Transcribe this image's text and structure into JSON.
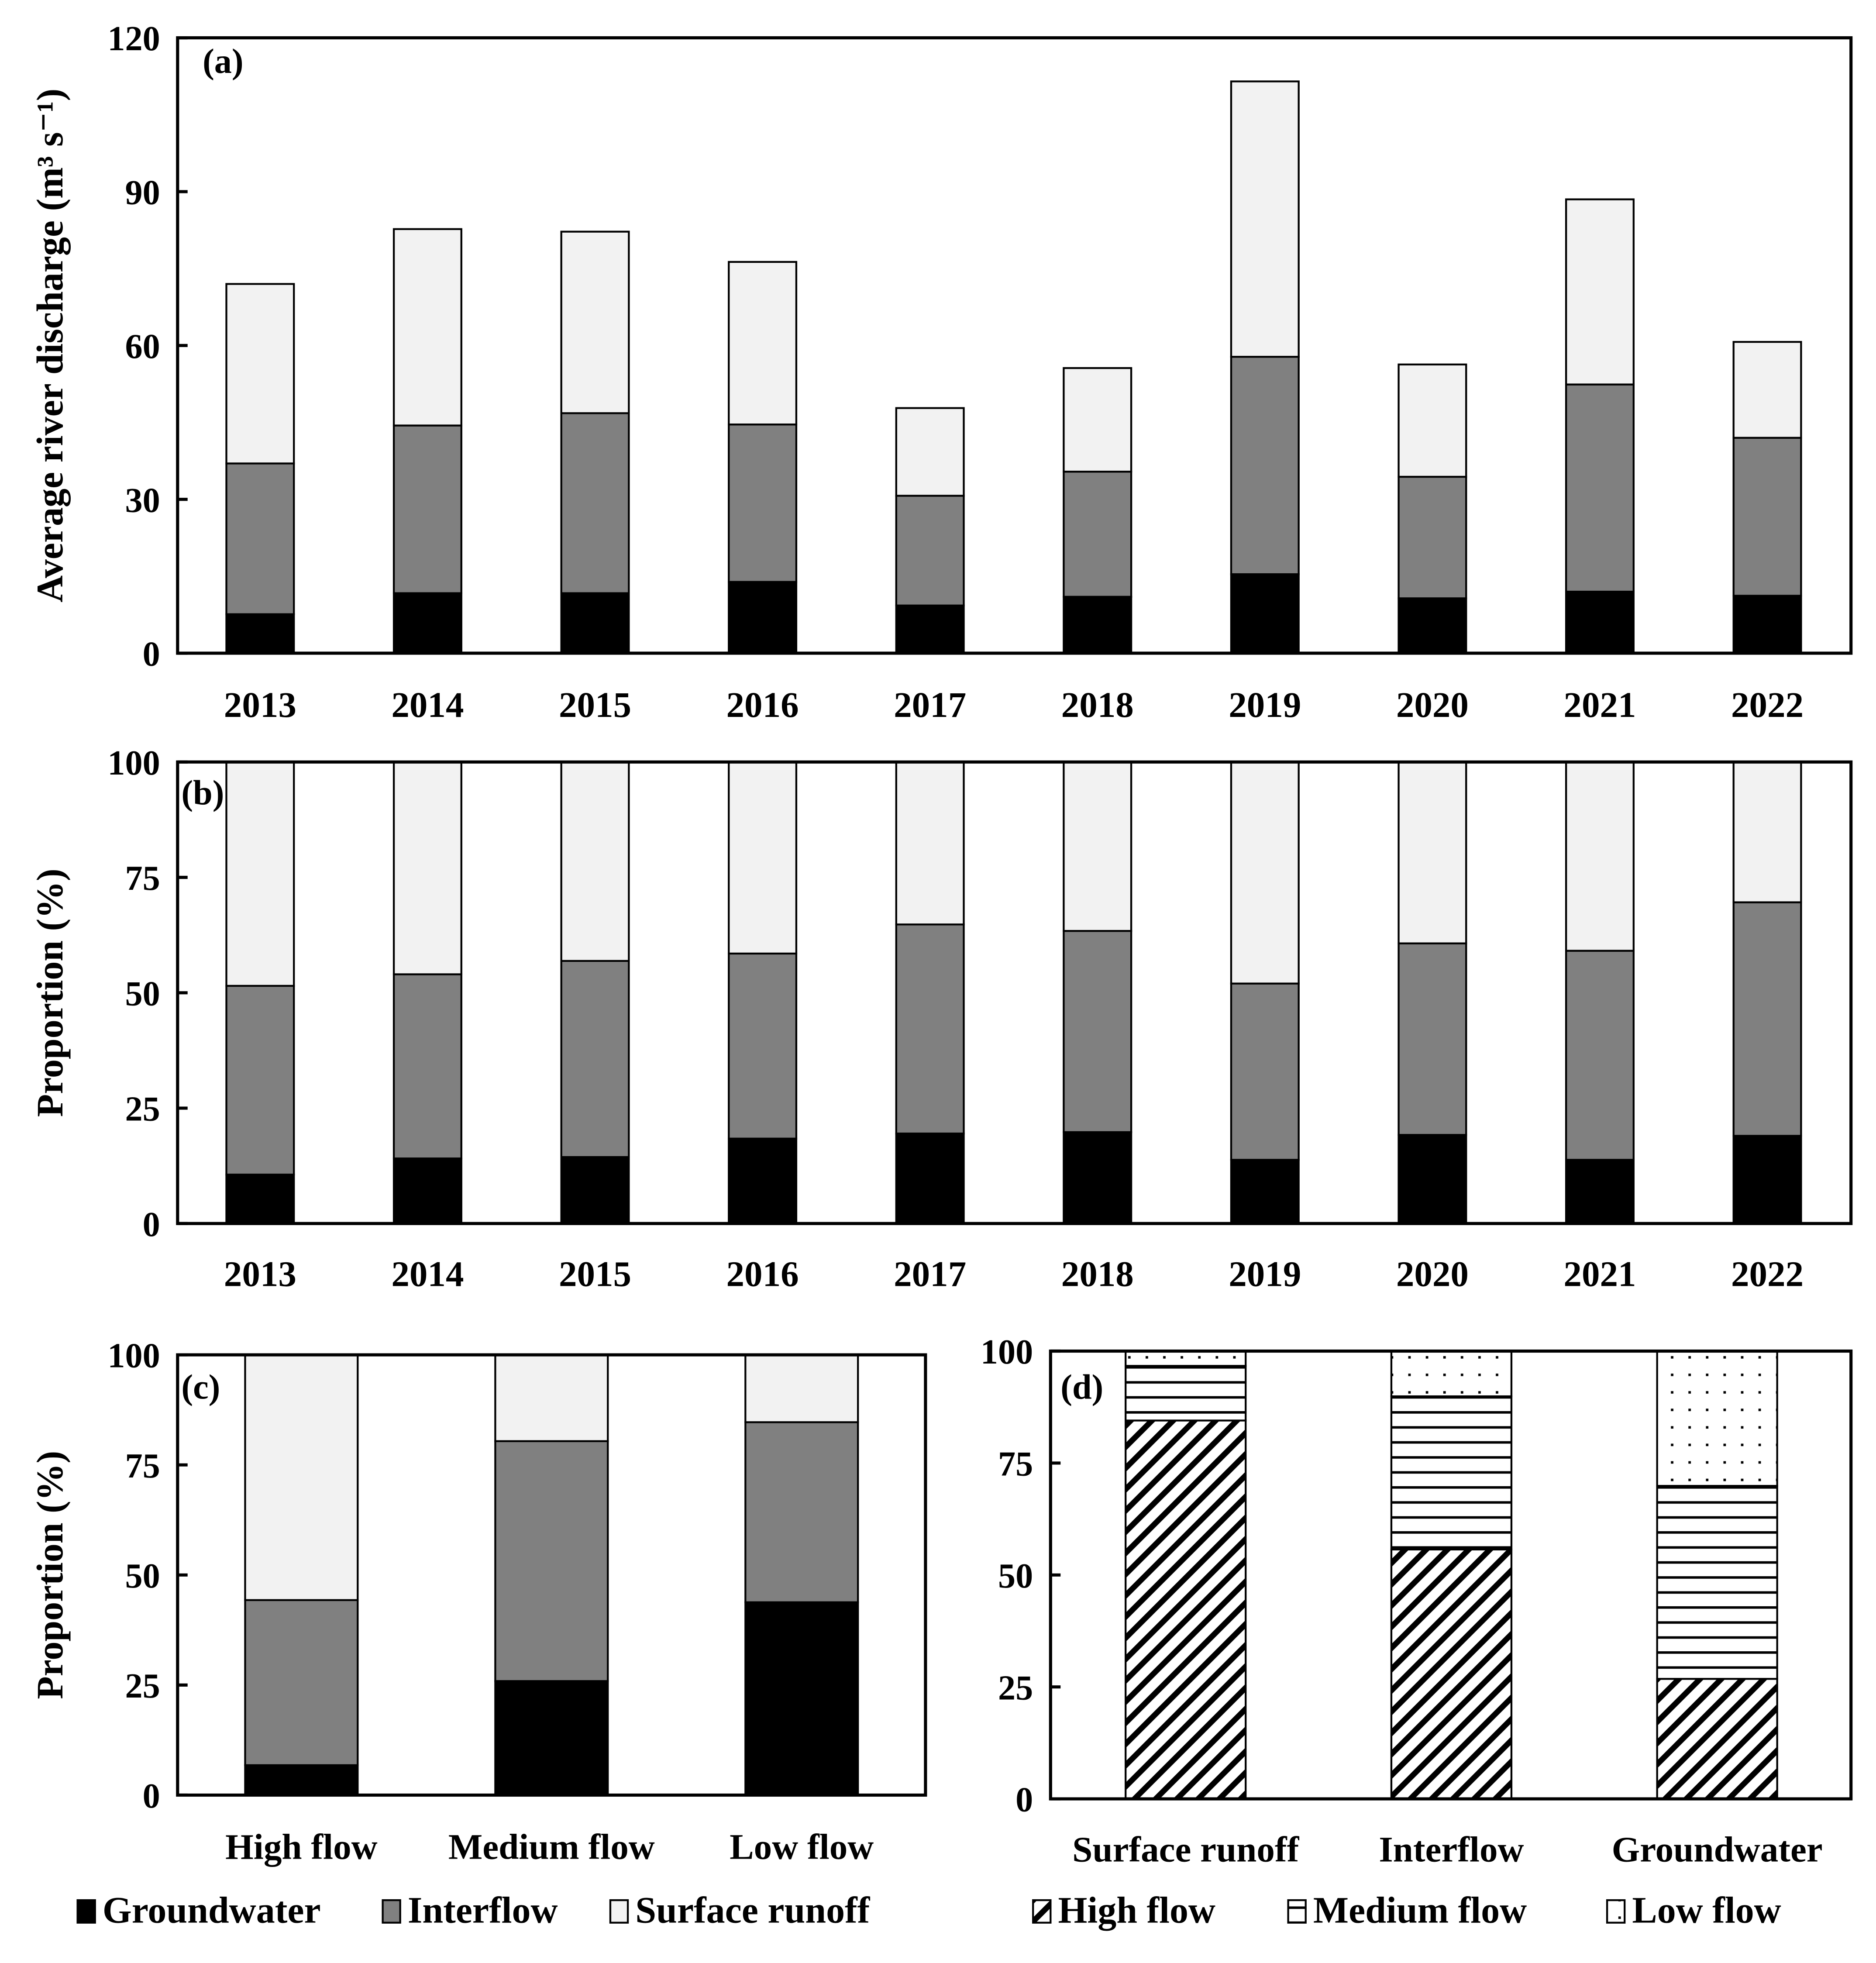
{
  "colors": {
    "groundwater": "#000000",
    "interflow": "#808080",
    "surface_runoff": "#f2f2f2",
    "axis": "#000000"
  },
  "chart_data": [
    {
      "panel": "(a)",
      "type": "bar",
      "stacked": true,
      "ylabel": "Average river discharge (m³ s⁻¹)",
      "ylim": [
        0,
        120
      ],
      "yticks": [
        0,
        30,
        60,
        90,
        120
      ],
      "categories": [
        "2013",
        "2014",
        "2015",
        "2016",
        "2017",
        "2018",
        "2019",
        "2020",
        "2021",
        "2022"
      ],
      "series": [
        {
          "name": "Groundwater",
          "fill": "#000000",
          "values": [
            7.6,
            11.7,
            11.7,
            13.9,
            9.3,
            11.0,
            15.4,
            10.7,
            12.0,
            11.2
          ]
        },
        {
          "name": "Interflow",
          "fill": "#808080",
          "values": [
            29.4,
            32.7,
            35.1,
            30.7,
            21.4,
            24.4,
            42.4,
            23.7,
            40.4,
            30.8
          ]
        },
        {
          "name": "Surface runoff",
          "fill": "#f2f2f2",
          "values": [
            35.0,
            38.3,
            35.4,
            31.7,
            17.1,
            20.2,
            53.7,
            21.9,
            36.1,
            18.7
          ]
        }
      ]
    },
    {
      "panel": "(b)",
      "type": "bar",
      "stacked": true,
      "ylabel": "Proportion (%)",
      "ylim": [
        0,
        100
      ],
      "yticks": [
        0,
        25,
        50,
        75,
        100
      ],
      "categories": [
        "2013",
        "2014",
        "2015",
        "2016",
        "2017",
        "2018",
        "2019",
        "2020",
        "2021",
        "2022"
      ],
      "series": [
        {
          "name": "Groundwater",
          "fill": "#000000",
          "values": [
            10.6,
            14.1,
            14.4,
            18.4,
            19.5,
            19.8,
            13.8,
            19.2,
            13.8,
            19.0
          ]
        },
        {
          "name": "Interflow",
          "fill": "#808080",
          "values": [
            40.9,
            39.9,
            42.5,
            40.1,
            45.3,
            43.6,
            38.2,
            41.5,
            45.3,
            50.6
          ]
        },
        {
          "name": "Surface runoff",
          "fill": "#f2f2f2",
          "values": [
            48.5,
            46.0,
            43.1,
            41.5,
            35.2,
            36.6,
            48.0,
            39.3,
            40.9,
            30.4
          ]
        }
      ]
    },
    {
      "panel": "(c)",
      "type": "bar",
      "stacked": true,
      "ylabel": "Proportion (%)",
      "ylim": [
        0,
        100
      ],
      "yticks": [
        0,
        25,
        50,
        75,
        100
      ],
      "categories": [
        "High flow",
        "Medium flow",
        "Low flow"
      ],
      "series": [
        {
          "name": "Groundwater",
          "fill": "#000000",
          "values": [
            6.8,
            25.9,
            43.8
          ]
        },
        {
          "name": "Interflow",
          "fill": "#808080",
          "values": [
            37.5,
            54.5,
            40.9
          ]
        },
        {
          "name": "Surface runoff",
          "fill": "#f2f2f2",
          "values": [
            55.7,
            19.6,
            15.3
          ]
        }
      ],
      "legend": "bottom"
    },
    {
      "panel": "(d)",
      "type": "bar",
      "stacked": true,
      "ylabel": "",
      "ylim": [
        0,
        100
      ],
      "yticks": [
        0,
        25,
        50,
        75,
        100
      ],
      "categories": [
        "Surface runoff",
        "Interflow",
        "Groundwater"
      ],
      "series": [
        {
          "name": "High flow",
          "fill": "diagonal-hatch",
          "values": [
            84.5,
            55.7,
            26.8
          ]
        },
        {
          "name": "Medium flow",
          "fill": "horizontal-lines",
          "values": [
            12.2,
            34.2,
            43.1
          ]
        },
        {
          "name": "Low flow",
          "fill": "dots",
          "values": [
            3.3,
            10.1,
            30.1
          ]
        }
      ],
      "legend": "bottom"
    }
  ]
}
